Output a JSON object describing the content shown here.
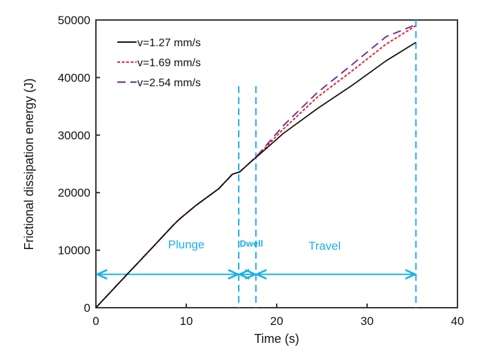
{
  "chart_data": {
    "type": "line",
    "title": "",
    "xlabel": "Time (s)",
    "ylabel": "Frictional dissipation energy (J)",
    "xlim": [
      0,
      40
    ],
    "ylim": [
      0,
      50000
    ],
    "xticks": [
      0,
      10,
      20,
      30,
      40
    ],
    "yticks": [
      0,
      10000,
      20000,
      30000,
      40000,
      50000
    ],
    "xtick_labels": [
      "0",
      "10",
      "20",
      "30",
      "40"
    ],
    "ytick_labels": [
      "0",
      "10000",
      "20000",
      "30000",
      "40000",
      "50000"
    ],
    "grid": false,
    "legend_position": "top-left",
    "series": [
      {
        "name": "v=1.27 mm/s",
        "color": "#111111",
        "style": "solid",
        "x": [
          0,
          3.5,
          6.3,
          8.5,
          9.2,
          11.0,
          13.6,
          15.1,
          15.9,
          17.1,
          18.0,
          20.7,
          24.5,
          28.3,
          32.1,
          35.4
        ],
        "y": [
          0,
          5870,
          10540,
          14250,
          15330,
          17700,
          20700,
          23200,
          23600,
          25300,
          26500,
          30250,
          34600,
          38600,
          42900,
          46100
        ]
      },
      {
        "name": "v=1.69 mm/s",
        "color": "#ee1c24",
        "style": "dotted",
        "x": [
          0,
          3.5,
          6.3,
          8.5,
          9.2,
          11.0,
          13.6,
          15.1,
          15.9,
          17.1,
          18.0,
          20.7,
          24.5,
          28.3,
          32.1,
          35.4
        ],
        "y": [
          0,
          5870,
          10540,
          14250,
          15330,
          17700,
          20700,
          23200,
          23600,
          25300,
          26600,
          31000,
          36600,
          41100,
          45800,
          49000
        ]
      },
      {
        "name": "v=2.54 mm/s",
        "color": "#7030a0",
        "style": "dashed",
        "x": [
          0,
          3.5,
          6.3,
          8.5,
          9.2,
          11.0,
          13.6,
          15.1,
          15.9,
          17.1,
          18.0,
          20.7,
          24.5,
          28.3,
          32.1,
          35.4
        ],
        "y": [
          0,
          5870,
          10540,
          14250,
          15330,
          17700,
          20700,
          23200,
          23600,
          25300,
          26700,
          31600,
          37400,
          42200,
          47100,
          49200
        ]
      }
    ],
    "phase_markers": {
      "color": "#1ab0e8",
      "boundaries_x": [
        15.8,
        17.7,
        35.4
      ],
      "boundary_top_y": [
        38500,
        38500,
        50000
      ],
      "arrow_y": 5800,
      "phases": [
        {
          "label": "Plunge",
          "from": 0,
          "to": 15.8,
          "label_x": 10.0,
          "label_y": 10300
        },
        {
          "label": "Dwell",
          "from": 15.8,
          "to": 17.7,
          "label_x": 17.2,
          "label_y": 10600
        },
        {
          "label": "Travel",
          "from": 17.7,
          "to": 35.4,
          "label_x": 25.3,
          "label_y": 10100
        }
      ]
    }
  }
}
